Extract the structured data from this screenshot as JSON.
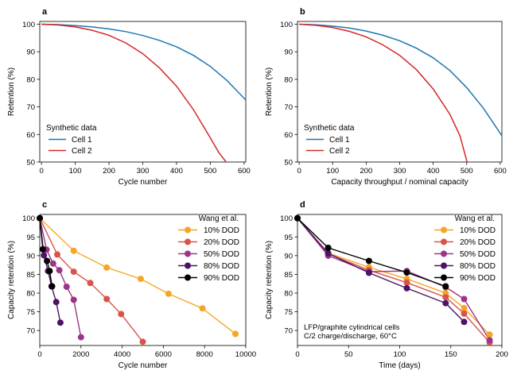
{
  "chart_data": [
    {
      "panel_label": "a",
      "type": "line",
      "xlabel": "Cycle number",
      "ylabel": "Retention (%)",
      "xlim": [
        -5,
        605
      ],
      "ylim": [
        50,
        101
      ],
      "xticks": [
        0,
        100,
        200,
        300,
        400,
        500,
        600
      ],
      "yticks": [
        50,
        60,
        70,
        80,
        90,
        100
      ],
      "legend_title": "Synthetic data",
      "legend_position": "lower-left",
      "series": [
        {
          "name": "Cell 1",
          "color": "#1f77b4",
          "x": [
            0,
            50,
            100,
            150,
            200,
            250,
            300,
            350,
            400,
            450,
            500,
            550,
            605
          ],
          "y": [
            100,
            99.85,
            99.5,
            99.0,
            98.3,
            97.3,
            95.9,
            94.1,
            91.8,
            88.7,
            84.7,
            79.5,
            72.5
          ]
        },
        {
          "name": "Cell 2",
          "color": "#d62728",
          "x": [
            0,
            50,
            100,
            150,
            200,
            250,
            300,
            350,
            400,
            450,
            500,
            525,
            550,
            555
          ],
          "y": [
            100,
            99.7,
            99.0,
            97.8,
            96.0,
            93.2,
            89.3,
            84.1,
            77.5,
            69.0,
            58.8,
            53.5,
            49.5,
            48.5
          ]
        }
      ]
    },
    {
      "panel_label": "b",
      "type": "line",
      "xlabel": "Capacity throughput / nominal capacity",
      "ylabel": "Retention (%)",
      "xlim": [
        -5,
        605
      ],
      "ylim": [
        50,
        101
      ],
      "xticks": [
        0,
        100,
        200,
        300,
        400,
        500,
        600
      ],
      "yticks": [
        50,
        60,
        70,
        80,
        90,
        100
      ],
      "legend_title": "Synthetic data",
      "legend_position": "lower-left",
      "series": [
        {
          "name": "Cell 1",
          "color": "#1f77b4",
          "x": [
            0,
            50,
            100,
            150,
            200,
            250,
            300,
            350,
            400,
            450,
            500,
            550,
            605
          ],
          "y": [
            100,
            99.8,
            99.3,
            98.6,
            97.5,
            96.0,
            94.0,
            91.3,
            87.8,
            83.2,
            77.0,
            69.5,
            59.5
          ]
        },
        {
          "name": "Cell 2",
          "color": "#d62728",
          "x": [
            0,
            50,
            100,
            150,
            200,
            250,
            300,
            350,
            400,
            450,
            480,
            500,
            505
          ],
          "y": [
            100,
            99.6,
            98.8,
            97.4,
            95.4,
            92.5,
            88.7,
            83.5,
            76.5,
            67.3,
            59.5,
            50.5,
            48.5
          ]
        }
      ]
    },
    {
      "panel_label": "c",
      "type": "line",
      "xlabel": "Cycle number",
      "ylabel": "Capacity retention (%)",
      "xlim": [
        0,
        10000
      ],
      "ylim": [
        66,
        101
      ],
      "xticks": [
        0,
        2000,
        4000,
        6000,
        8000,
        10000
      ],
      "yticks": [
        70,
        75,
        80,
        85,
        90,
        95,
        100
      ],
      "legend_title": "Wang et al.",
      "legend_position": "upper-right",
      "series": [
        {
          "name": "10% DOD",
          "color": "#f5a623",
          "x": [
            0,
            1650,
            3250,
            4900,
            6250,
            7900,
            9500
          ],
          "y": [
            100,
            91.3,
            86.8,
            83.8,
            79.8,
            75.9,
            69.1
          ]
        },
        {
          "name": "20% DOD",
          "color": "#d9534a",
          "x": [
            0,
            850,
            1650,
            2450,
            3250,
            3950,
            5000
          ],
          "y": [
            100,
            90.3,
            85.7,
            82.7,
            78.4,
            74.4,
            67.0
          ]
        },
        {
          "name": "50% DOD",
          "color": "#9c3587",
          "x": [
            0,
            330,
            650,
            950,
            1300,
            1650,
            2000
          ],
          "y": [
            100,
            91.6,
            87.9,
            86.1,
            81.7,
            78.2,
            68.2
          ]
        },
        {
          "name": "80% DOD",
          "color": "#4b1466",
          "x": [
            0,
            200,
            400,
            570,
            800,
            1000
          ],
          "y": [
            100,
            90.1,
            85.9,
            81.8,
            77.6,
            72.1
          ]
        },
        {
          "name": "90% DOD",
          "color": "#000000",
          "x": [
            0,
            150,
            350,
            480,
            600
          ],
          "y": [
            100,
            91.7,
            88.6,
            85.9,
            81.8
          ]
        }
      ]
    },
    {
      "panel_label": "d",
      "type": "line",
      "xlabel": "Time (days)",
      "ylabel": "Capacity retention (%)",
      "xlim": [
        0,
        200
      ],
      "ylim": [
        66,
        101
      ],
      "xticks": [
        0,
        50,
        100,
        150,
        200
      ],
      "yticks": [
        70,
        75,
        80,
        85,
        90,
        95,
        100
      ],
      "legend_title": "Wang et al.",
      "legend_position": "upper-right",
      "annotation": [
        "LFP/graphite cylindrical cells",
        "C/2 charge/discharge, 60°C"
      ],
      "series": [
        {
          "name": "10% DOD",
          "color": "#f5a623",
          "x": [
            0,
            30,
            70,
            107,
            145,
            163,
            188
          ],
          "y": [
            100,
            90.7,
            86.9,
            83.8,
            80.0,
            76.0,
            68.9
          ]
        },
        {
          "name": "20% DOD",
          "color": "#d9534a",
          "x": [
            0,
            30,
            70,
            107,
            145,
            163,
            188
          ],
          "y": [
            100,
            90.5,
            86.1,
            82.8,
            78.9,
            74.5,
            66.8
          ]
        },
        {
          "name": "50% DOD",
          "color": "#9c3587",
          "x": [
            0,
            30,
            70,
            107,
            145,
            163,
            188
          ],
          "y": [
            100,
            90.0,
            85.7,
            85.9,
            81.6,
            78.4,
            67.4
          ]
        },
        {
          "name": "80% DOD",
          "color": "#4b1466",
          "x": [
            0,
            30,
            70,
            107,
            145,
            163
          ],
          "y": [
            100,
            90.6,
            85.4,
            81.3,
            77.3,
            72.3
          ]
        },
        {
          "name": "90% DOD",
          "color": "#000000",
          "x": [
            0,
            30,
            70,
            107,
            145
          ],
          "y": [
            100,
            92.1,
            88.6,
            85.5,
            81.8
          ]
        }
      ]
    }
  ]
}
